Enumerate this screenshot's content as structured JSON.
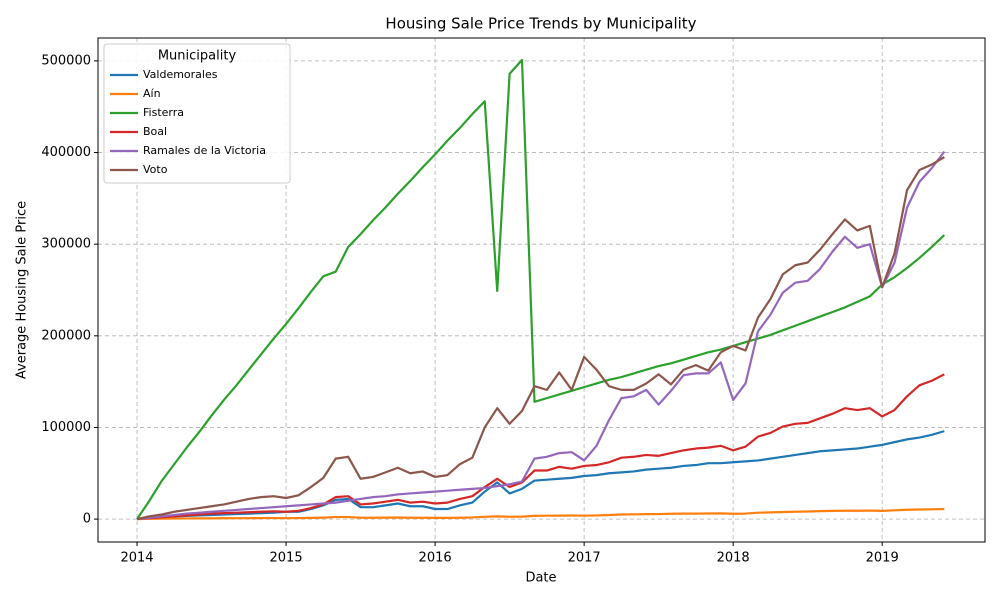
{
  "chart_data": {
    "type": "line",
    "title": "Housing Sale Price Trends by Municipality",
    "xlabel": "Date",
    "ylabel": "Average Housing Sale Price",
    "legend_title": "Municipality",
    "legend": "upper left",
    "grid": true,
    "xlim": [
      2013.738,
      2019.69
    ],
    "xticks": [
      2014,
      2015,
      2016,
      2017,
      2018,
      2019
    ],
    "ylim": [
      -25000,
      525000
    ],
    "yticks": [
      0,
      100000,
      200000,
      300000,
      400000,
      500000
    ],
    "x": [
      2014,
      2014.083,
      2014.167,
      2014.25,
      2014.333,
      2014.417,
      2014.5,
      2014.583,
      2014.667,
      2014.75,
      2014.833,
      2014.917,
      2015,
      2015.083,
      2015.167,
      2015.25,
      2015.333,
      2015.417,
      2015.5,
      2015.583,
      2015.667,
      2015.75,
      2015.833,
      2015.917,
      2016,
      2016.083,
      2016.167,
      2016.25,
      2016.333,
      2016.417,
      2016.5,
      2016.583,
      2016.667,
      2016.75,
      2016.833,
      2016.917,
      2017,
      2017.083,
      2017.167,
      2017.25,
      2017.333,
      2017.417,
      2017.5,
      2017.583,
      2017.667,
      2017.75,
      2017.833,
      2017.917,
      2018,
      2018.083,
      2018.167,
      2018.25,
      2018.333,
      2018.417,
      2018.5,
      2018.583,
      2018.667,
      2018.75,
      2018.833,
      2018.917,
      2019,
      2019.083,
      2019.167,
      2019.25,
      2019.333,
      2019.417
    ],
    "series": [
      {
        "name": "Valdemorales",
        "color": "#1f77b4",
        "values": [
          0,
          1000,
          2000,
          3000,
          3500,
          4000,
          4500,
          5000,
          5500,
          6000,
          6500,
          7000,
          8000,
          8000,
          11000,
          15000,
          21000,
          22000,
          13000,
          13000,
          15000,
          17000,
          14000,
          14000,
          11000,
          11000,
          15000,
          18000,
          30000,
          40000,
          28000,
          33000,
          42000,
          43000,
          44000,
          45000,
          47000,
          48000,
          50000,
          51000,
          52000,
          54000,
          55000,
          56000,
          58000,
          59000,
          61000,
          61000,
          62000,
          63000,
          64000,
          66000,
          68000,
          70000,
          72000,
          74000,
          75000,
          76000,
          77000,
          79000,
          81000,
          84000,
          87000,
          89000,
          92000,
          96000
        ]
      },
      {
        "name": "Aín",
        "color": "#ff7f0e",
        "values": [
          0,
          300,
          500,
          600,
          700,
          800,
          800,
          900,
          1000,
          1000,
          1100,
          1100,
          1000,
          1100,
          1300,
          1600,
          2200,
          2200,
          1500,
          1500,
          1600,
          1700,
          1500,
          1500,
          1300,
          1300,
          1500,
          1800,
          2500,
          3000,
          2500,
          2700,
          3500,
          3700,
          3800,
          3900,
          3700,
          4000,
          4500,
          5000,
          5200,
          5400,
          5500,
          5800,
          6000,
          6000,
          6100,
          6200,
          5800,
          6000,
          7000,
          7300,
          7700,
          8000,
          8300,
          8700,
          9000,
          9100,
          9100,
          9200,
          9000,
          9600,
          10200,
          10500,
          10700,
          11000
        ]
      },
      {
        "name": "Fisterra",
        "color": "#2ca02c",
        "values": [
          0,
          20000,
          42000,
          60000,
          78000,
          95000,
          113000,
          130000,
          146000,
          163000,
          180000,
          197000,
          213000,
          230000,
          248000,
          265000,
          270000,
          297000,
          311000,
          326000,
          340000,
          355000,
          369000,
          384000,
          398000,
          413000,
          427000,
          442000,
          456000,
          249000,
          486000,
          501000,
          128000,
          132000,
          136000,
          140000,
          144000,
          148000,
          152000,
          155000,
          159000,
          163000,
          167000,
          170000,
          174000,
          178000,
          182000,
          185000,
          189000,
          193000,
          197000,
          201000,
          206000,
          211000,
          216000,
          221000,
          226000,
          231000,
          237000,
          243000,
          256000,
          264000,
          274000,
          285000,
          297000,
          310000
        ]
      },
      {
        "name": "Boal",
        "color": "#d62728",
        "values": [
          0,
          1000,
          2000,
          3000,
          4000,
          5000,
          6000,
          6500,
          7000,
          7500,
          8000,
          8500,
          8000,
          9000,
          12000,
          16000,
          24000,
          25000,
          16000,
          17000,
          19000,
          21000,
          18000,
          19000,
          17000,
          18000,
          22000,
          25000,
          35000,
          44000,
          35000,
          40000,
          53000,
          53000,
          57000,
          55000,
          58000,
          59000,
          62000,
          67000,
          68000,
          70000,
          69000,
          72000,
          75000,
          77000,
          78000,
          80000,
          75000,
          79000,
          90000,
          94000,
          101000,
          104000,
          105000,
          110000,
          115000,
          121000,
          119000,
          121000,
          112000,
          119000,
          134000,
          146000,
          151000,
          158000
        ]
      },
      {
        "name": "Ramales de la Victoria",
        "color": "#9467bd",
        "values": [
          0,
          1500,
          3000,
          4500,
          6000,
          7000,
          8000,
          9000,
          10000,
          11000,
          12000,
          13000,
          14000,
          15000,
          16000,
          17000,
          18000,
          20000,
          22000,
          24000,
          25000,
          27000,
          28000,
          29000,
          30000,
          31000,
          32000,
          33000,
          34000,
          36000,
          38000,
          41000,
          66000,
          68000,
          72000,
          73000,
          64000,
          80000,
          108000,
          132000,
          134000,
          141000,
          125000,
          140000,
          157000,
          159000,
          159000,
          171000,
          130000,
          148000,
          205000,
          223000,
          247000,
          258000,
          260000,
          273000,
          292000,
          308000,
          296000,
          300000,
          253000,
          280000,
          340000,
          368000,
          383000,
          401000
        ]
      },
      {
        "name": "Voto",
        "color": "#8c564b",
        "values": [
          0,
          3000,
          5000,
          8000,
          10000,
          12000,
          14000,
          16000,
          19000,
          22000,
          24000,
          25000,
          23000,
          26000,
          35000,
          45000,
          66000,
          68000,
          44000,
          46000,
          51000,
          56000,
          50000,
          52000,
          46000,
          48000,
          60000,
          67000,
          100000,
          121000,
          104000,
          118000,
          145000,
          141000,
          160000,
          141000,
          177000,
          163000,
          145000,
          141000,
          141000,
          148000,
          158000,
          147000,
          163000,
          168000,
          162000,
          182000,
          189000,
          184000,
          220000,
          240000,
          267000,
          277000,
          280000,
          294000,
          311000,
          327000,
          315000,
          320000,
          253000,
          290000,
          359000,
          381000,
          387000,
          395000
        ]
      }
    ]
  }
}
